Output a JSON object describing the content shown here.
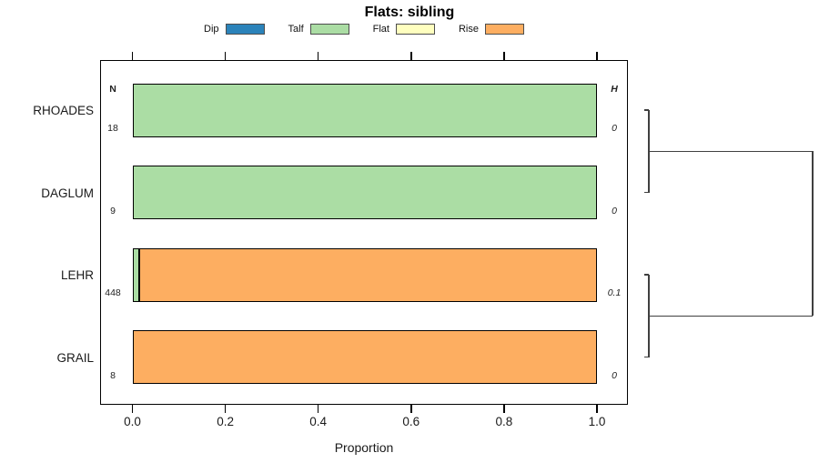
{
  "title": "Flats: sibling",
  "xlabel": "Proportion",
  "headers": {
    "n": "N",
    "h": "H"
  },
  "colors": {
    "dip": "#2B83BA",
    "talf": "#ABDDA4",
    "flat": "#FFFFBF",
    "rise": "#FDAE61"
  },
  "legend": {
    "items": [
      {
        "label": "Dip",
        "color": "#2B83BA"
      },
      {
        "label": "Talf",
        "color": "#ABDDA4"
      },
      {
        "label": "Flat",
        "color": "#FFFFBF"
      },
      {
        "label": "Rise",
        "color": "#FDAE61"
      }
    ],
    "position": "top"
  },
  "chart_data": {
    "type": "bar",
    "orientation": "horizontal",
    "stacked": true,
    "title": "Flats: sibling",
    "xlabel": "Proportion",
    "xlim": [
      0,
      1
    ],
    "grid": false,
    "legend_position": "top",
    "x_ticks": [
      0.0,
      0.2,
      0.4,
      0.6,
      0.8,
      1.0
    ],
    "x_tick_labels": [
      "0.0",
      "0.2",
      "0.4",
      "0.6",
      "0.8",
      "1.0"
    ],
    "categories": [
      "RHOADES",
      "DAGLUM",
      "LEHR",
      "GRAIL"
    ],
    "series": [
      {
        "name": "Dip",
        "color": "#2B83BA",
        "values": [
          0,
          0,
          0,
          0
        ]
      },
      {
        "name": "Talf",
        "color": "#ABDDA4",
        "values": [
          1.0,
          1.0,
          0.015,
          0
        ]
      },
      {
        "name": "Flat",
        "color": "#FFFFBF",
        "values": [
          0,
          0,
          0,
          0
        ]
      },
      {
        "name": "Rise",
        "color": "#FDAE61",
        "values": [
          0,
          0,
          0.985,
          1.0
        ]
      }
    ],
    "n_values": [
      "18",
      "9",
      "448",
      "8"
    ],
    "h_values": [
      "0",
      "0",
      "0.1",
      "0"
    ],
    "dendrogram": {
      "pairs": [
        [
          "RHOADES",
          "DAGLUM"
        ],
        [
          "LEHR",
          "GRAIL"
        ]
      ],
      "joined": true
    }
  }
}
